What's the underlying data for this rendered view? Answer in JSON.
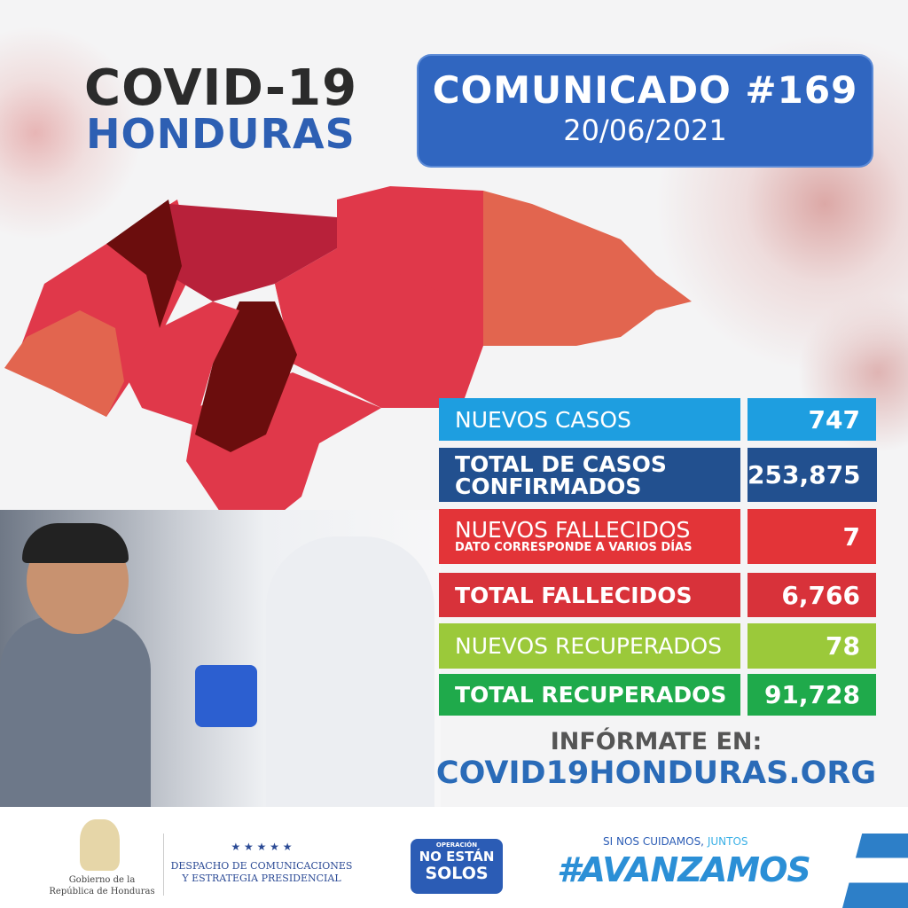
{
  "header": {
    "title_line1": "COVID-19",
    "title_line2": "HONDURAS"
  },
  "communique": {
    "title": "COMUNICADO #169",
    "date": "20/06/2021"
  },
  "stats": [
    {
      "label": "NUEVOS CASOS",
      "value": "747",
      "color": "#1e9ee0"
    },
    {
      "label": "TOTAL DE CASOS CONFIRMADOS",
      "value": "253,875",
      "color": "#22508f"
    },
    {
      "label": "NUEVOS FALLECIDOS",
      "note": "DATO CORRESPONDE A VARIOS DÍAS",
      "value": "7",
      "color": "#e33438"
    },
    {
      "label": "TOTAL FALLECIDOS",
      "value": "6,766",
      "color": "#d8323a"
    },
    {
      "label": "NUEVOS RECUPERADOS",
      "value": "78",
      "color": "#9bc93a"
    },
    {
      "label": "TOTAL RECUPERADOS",
      "value": "91,728",
      "color": "#1faa4b"
    }
  ],
  "info": {
    "label": "INFÓRMATE EN:",
    "url": "COVID19HONDURAS.ORG"
  },
  "footer": {
    "gov_line1": "Gobierno de la",
    "gov_line2": "República de Honduras",
    "stars": "★ ★ ★ ★ ★",
    "dept_line1": "DESPACHO DE COMUNICACIONES",
    "dept_line2": "Y ESTRATEGIA PRESIDENCIAL",
    "op_line1": "OPERACIÓN",
    "op_line2": "NO ESTÁN",
    "op_line3": "SOLOS",
    "slogan_small": "SI NOS CUIDAMOS,",
    "slogan_small2": "JUNTOS",
    "slogan_big": "#AVANZAMOS"
  },
  "map_colors": {
    "dark": "#6b0d0d",
    "mid": "#b8213a",
    "red": "#e0384a",
    "orange": "#e2654f"
  }
}
